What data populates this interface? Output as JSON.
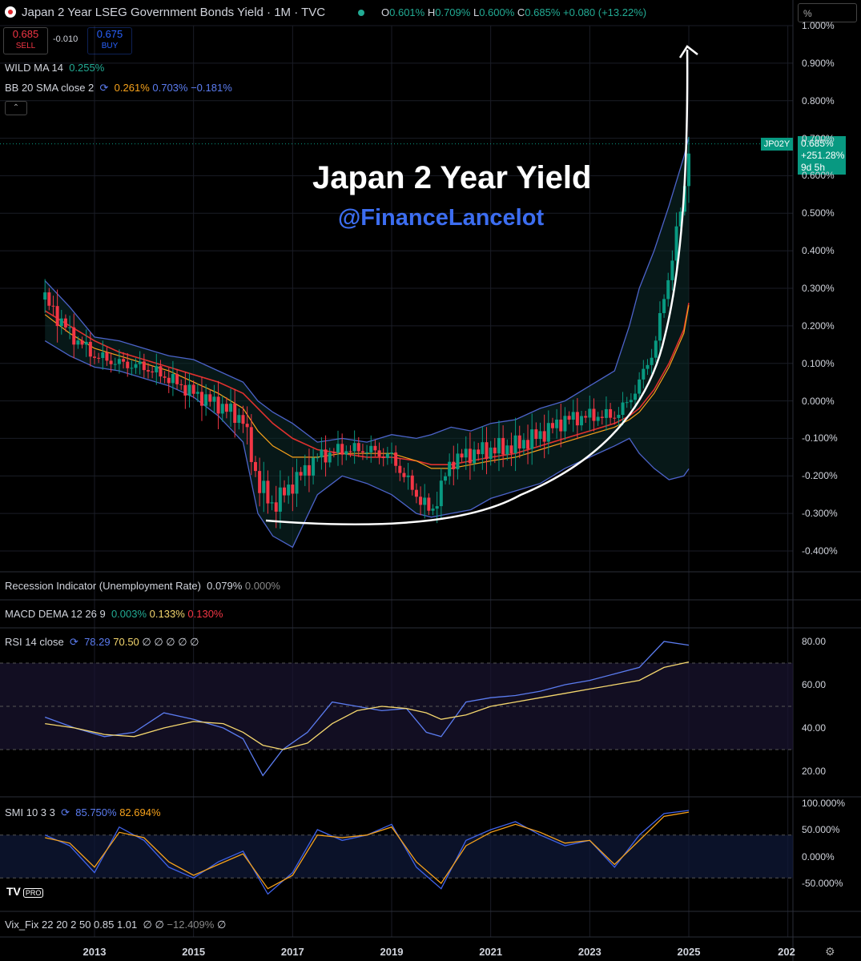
{
  "header": {
    "title": "Japan 2 Year LSEG Government Bonds Yield · 1M · TVC",
    "ohlc": {
      "o_label": "O",
      "o": "0.601%",
      "h_label": "H",
      "h": "0.709%",
      "l_label": "L",
      "l": "0.600%",
      "c_label": "C",
      "c": "0.685%",
      "change": "+0.080 (+13.22%)"
    },
    "sell": {
      "price": "0.685",
      "label": "SELL"
    },
    "buy": {
      "price": "0.675",
      "label": "BUY"
    },
    "spread": "-0.010",
    "unit_box": "%"
  },
  "indicators": {
    "wild_ma": {
      "label": "WILD MA 14",
      "value": "0.255%"
    },
    "bb": {
      "label": "BB 20 SMA close 2",
      "basis": "0.261%",
      "upper": "0.703%",
      "lower": "−0.181%"
    },
    "recession": {
      "label": "Recession Indicator (Unemployment Rate)",
      "v1": "0.079%",
      "v2": "0.000%"
    },
    "macd": {
      "label": "MACD DEMA 12 26 9",
      "v1": "0.003%",
      "v2": "0.133%",
      "v3": "0.130%"
    },
    "rsi": {
      "label": "RSI 14 close",
      "v1": "78.29",
      "v2": "70.50",
      "tail": "∅ ∅ ∅ ∅ ∅"
    },
    "smi": {
      "label": "SMI 10 3 3",
      "v1": "85.750%",
      "v2": "82.694%"
    },
    "vix": {
      "label": "Vix_Fix 22 20 2 50 0.85 1.01",
      "tail": "∅ ∅",
      "v1": "−12.409%",
      "tail2": "∅"
    }
  },
  "price_tag": {
    "symbol": "JP02Y",
    "price": "0.685%",
    "change": "+251.28%",
    "countdown": "9d 5h"
  },
  "annotation": {
    "title": "Japan 2 Year Yield",
    "handle": "@FinanceLancelot"
  },
  "logo": {
    "mark": "TV",
    "badge": "PRO"
  },
  "chart_data": {
    "type": "line",
    "title": "Japan 2 Year LSEG Government Bonds Yield",
    "y_axis_labels": [
      "1.000%",
      "0.900%",
      "0.800%",
      "0.700%",
      "0.600%",
      "0.500%",
      "0.400%",
      "0.300%",
      "0.200%",
      "0.100%",
      "0.000%",
      "-0.100%",
      "-0.200%",
      "-0.300%",
      "-0.400%"
    ],
    "ylim": [
      -0.42,
      1.0
    ],
    "x_axis_labels": [
      "2013",
      "2015",
      "2017",
      "2019",
      "2021",
      "2023",
      "2025",
      "202"
    ],
    "x": [
      2012.0,
      2012.5,
      2013.0,
      2013.5,
      2014.0,
      2014.5,
      2015.0,
      2015.5,
      2016.0,
      2016.3,
      2016.6,
      2017.0,
      2017.5,
      2018.0,
      2018.5,
      2019.0,
      2019.5,
      2019.8,
      2020.2,
      2020.6,
      2021.0,
      2021.5,
      2022.0,
      2022.5,
      2023.0,
      2023.5,
      2023.8,
      2024.0,
      2024.3,
      2024.6,
      2024.9,
      2025.0
    ],
    "series": [
      {
        "values": [
          0.27,
          0.18,
          0.12,
          0.1,
          0.09,
          0.06,
          0.02,
          -0.01,
          -0.05,
          -0.22,
          -0.28,
          -0.22,
          -0.15,
          -0.13,
          -0.13,
          -0.15,
          -0.25,
          -0.3,
          -0.16,
          -0.14,
          -0.13,
          -0.12,
          -0.09,
          -0.05,
          -0.04,
          -0.04,
          0.0,
          0.05,
          0.14,
          0.34,
          0.55,
          0.685
        ]
      },
      {
        "values": [
          0.23,
          0.18,
          0.14,
          0.12,
          0.1,
          0.08,
          0.05,
          0.02,
          -0.02,
          -0.08,
          -0.12,
          -0.15,
          -0.15,
          -0.14,
          -0.14,
          -0.14,
          -0.16,
          -0.18,
          -0.18,
          -0.17,
          -0.16,
          -0.15,
          -0.13,
          -0.11,
          -0.09,
          -0.07,
          -0.05,
          -0.03,
          0.02,
          0.09,
          0.18,
          0.255
        ]
      },
      {
        "values": [
          0.24,
          0.2,
          0.16,
          0.13,
          0.11,
          0.09,
          0.07,
          0.05,
          0.02,
          -0.02,
          -0.06,
          -0.1,
          -0.13,
          -0.14,
          -0.15,
          -0.15,
          -0.16,
          -0.17,
          -0.17,
          -0.16,
          -0.15,
          -0.14,
          -0.12,
          -0.1,
          -0.08,
          -0.06,
          -0.04,
          -0.02,
          0.03,
          0.1,
          0.19,
          0.261
        ]
      },
      {
        "values": [
          0.32,
          0.25,
          0.17,
          0.16,
          0.14,
          0.12,
          0.11,
          0.08,
          0.05,
          0.0,
          -0.03,
          -0.06,
          -0.11,
          -0.1,
          -0.11,
          -0.09,
          -0.1,
          -0.09,
          -0.07,
          -0.08,
          -0.06,
          -0.05,
          -0.02,
          0.0,
          0.04,
          0.08,
          0.2,
          0.3,
          0.4,
          0.52,
          0.65,
          0.703
        ]
      },
      {
        "values": [
          0.16,
          0.12,
          0.09,
          0.08,
          0.06,
          0.04,
          0.01,
          -0.04,
          -0.11,
          -0.3,
          -0.36,
          -0.39,
          -0.25,
          -0.2,
          -0.22,
          -0.25,
          -0.3,
          -0.31,
          -0.3,
          -0.29,
          -0.26,
          -0.24,
          -0.22,
          -0.18,
          -0.15,
          -0.12,
          -0.1,
          -0.14,
          -0.18,
          -0.21,
          -0.2,
          -0.181
        ]
      }
    ],
    "rsi": {
      "axis_labels": [
        "80.00",
        "60.00",
        "40.00",
        "20.00"
      ],
      "ylim": [
        10,
        85
      ],
      "x": [
        2012.0,
        2012.6,
        2013.2,
        2013.8,
        2014.4,
        2015.0,
        2015.6,
        2016.0,
        2016.4,
        2016.8,
        2017.3,
        2017.8,
        2018.3,
        2018.8,
        2019.3,
        2019.7,
        2020.0,
        2020.5,
        2021.0,
        2021.5,
        2022.0,
        2022.5,
        2023.0,
        2023.5,
        2024.0,
        2024.5,
        2025.0
      ],
      "rsi_values": [
        45,
        40,
        36,
        38,
        47,
        44,
        40,
        35,
        18,
        30,
        38,
        52,
        50,
        48,
        49,
        38,
        36,
        52,
        54,
        55,
        57,
        60,
        62,
        65,
        68,
        80,
        78.29
      ],
      "ma_values": [
        42,
        40,
        37,
        36,
        40,
        43,
        42,
        38,
        32,
        30,
        33,
        42,
        48,
        50,
        49,
        47,
        44,
        46,
        50,
        52,
        54,
        56,
        58,
        60,
        62,
        68,
        70.5
      ]
    },
    "smi": {
      "axis_labels": [
        "100.000%",
        "50.000%",
        "0.000%",
        "-50.000%"
      ],
      "ylim": [
        -80,
        105
      ],
      "x": [
        2012.0,
        2012.5,
        2013.0,
        2013.5,
        2014.0,
        2014.5,
        2015.0,
        2015.5,
        2016.0,
        2016.5,
        2017.0,
        2017.5,
        2018.0,
        2018.5,
        2019.0,
        2019.5,
        2020.0,
        2020.5,
        2021.0,
        2021.5,
        2022.0,
        2022.5,
        2023.0,
        2023.5,
        2024.0,
        2024.5,
        2025.0
      ],
      "smi_values": [
        40,
        20,
        -30,
        55,
        30,
        -20,
        -40,
        -10,
        10,
        -70,
        -30,
        50,
        30,
        40,
        60,
        -20,
        -60,
        30,
        50,
        65,
        40,
        20,
        30,
        -20,
        40,
        80,
        85.75
      ],
      "signal_values": [
        35,
        25,
        -20,
        45,
        35,
        -10,
        -35,
        -15,
        5,
        -60,
        -35,
        40,
        35,
        40,
        55,
        -10,
        -50,
        20,
        45,
        60,
        45,
        25,
        30,
        -15,
        30,
        75,
        82.694
      ]
    }
  },
  "colors": {
    "up": "#089981",
    "down": "#f23645",
    "bb": "#4c63c9",
    "basis": "#e0312e",
    "wild": "#f7a21b",
    "rsi": "#5b7cf0",
    "rsi_ma": "#f5d76e",
    "smi": "#3f62e8",
    "smi_sig": "#f7a21b"
  }
}
